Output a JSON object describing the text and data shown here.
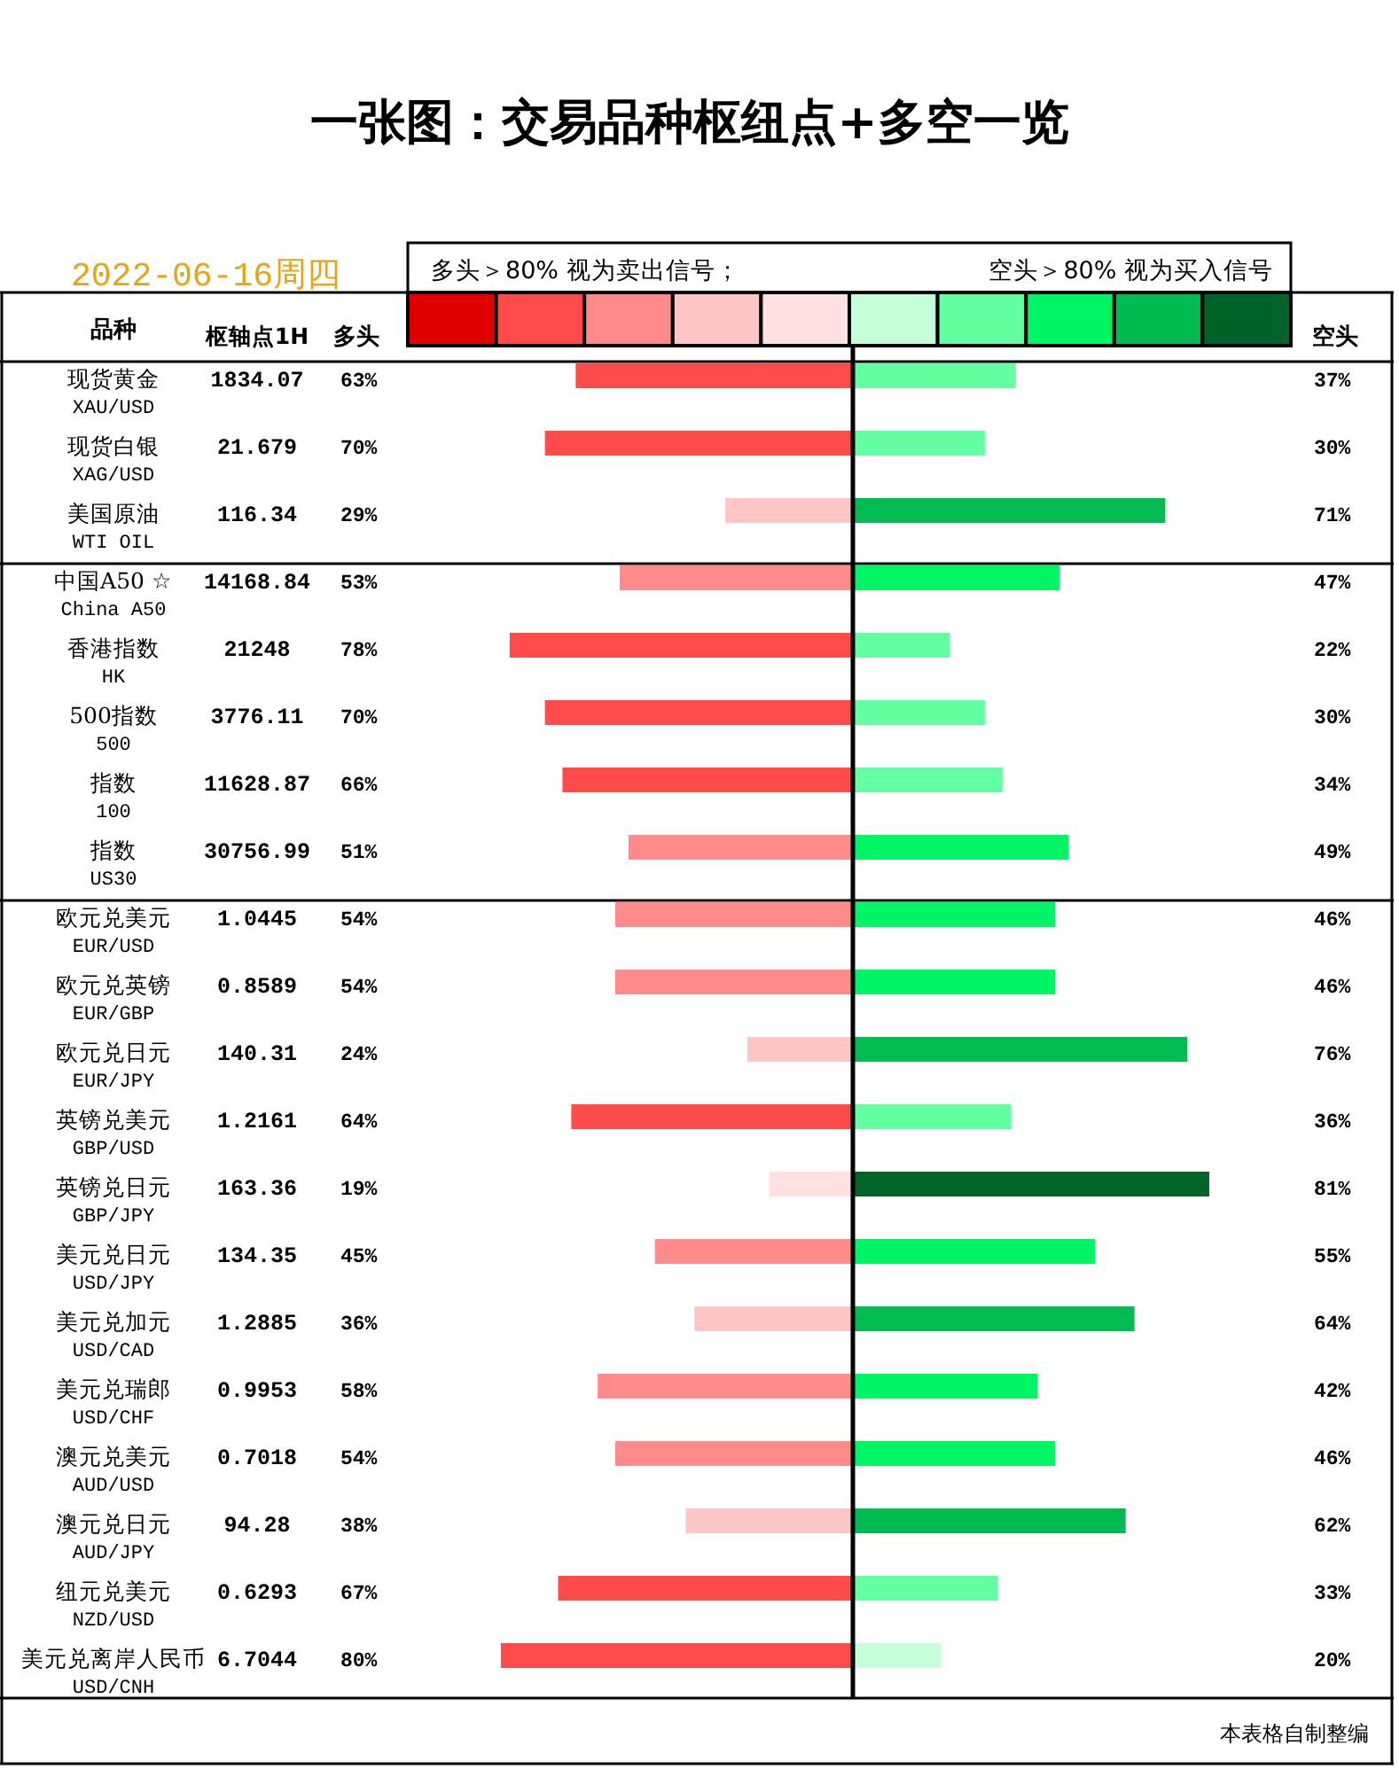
{
  "chart_data": [
    {
      "type": "bar",
      "orientation": "horizontal",
      "title": "一张图：交易品种枢纽点+多空一览",
      "subtitle": "2022-06-16周四",
      "ylabel": "品种",
      "y2label": "枢轴点1H",
      "categories": [
        "现货黄金\nXAU/USD",
        "现货白银\nXAG/USD",
        "美国原油\nWTI OIL",
        "中国A50 ☆\nChina A50",
        "香港指数\nHK",
        "500指数\n500",
        "指数\n100",
        "指数\nUS30",
        "欧元兑美元\nEUR/USD",
        "欧元兑英镑\nEUR/GBP",
        "欧元兑日元\nEUR/JPY",
        "英镑兑美元\nGBP/USD",
        "英镑兑日元\nGBP/JPY",
        "美元兑日元\nUSD/JPY",
        "美元兑加元\nUSD/CAD",
        "美元兑瑞郎\nUSD/CHF",
        "澳元兑美元\nAUD/USD",
        "澳元兑日元\nAUD/JPY",
        "纽元兑美元\nNZD/USD",
        "美元兑离岸人民币\nUSD/CNH"
      ],
      "y2_categories": [
        "1834.07",
        "21.679",
        "116.34",
        "14168.84",
        "21248",
        "3776.11",
        "11628.87",
        "30756.99",
        "1.0445",
        "0.8589",
        "140.31",
        "1.2161",
        "163.36",
        "134.35",
        "1.2885",
        "0.9953",
        "0.7018",
        "94.28",
        "0.6293",
        "6.7044"
      ],
      "series": [
        {
          "values": [
            63,
            70,
            29,
            53,
            78,
            70,
            66,
            51,
            54,
            54,
            24,
            64,
            19,
            45,
            36,
            58,
            54,
            38,
            67,
            80
          ],
          "colors": [
            "#ff4b4b",
            "#ff4b4b",
            "#ffc6c6",
            "#ff8a8a",
            "#ff4b4b",
            "#ff4b4b",
            "#ff4b4b",
            "#ff8a8a",
            "#ff8a8a",
            "#ff8a8a",
            "#ffc6c6",
            "#ff4b4b",
            "#ffe1e1",
            "#ff8a8a",
            "#ffc6c6",
            "#ff8a8a",
            "#ff8a8a",
            "#ffc6c6",
            "#ff4b4b",
            "#ff4b4b"
          ],
          "value_labels": [
            "63%",
            "70%",
            "29%",
            "53%",
            "78%",
            "70%",
            "66%",
            "51%",
            "54%",
            "54%",
            "24%",
            "64%",
            "19%",
            "45%",
            "36%",
            "58%",
            "54%",
            "38%",
            "67%",
            "80%"
          ]
        }
      ],
      "tick_labels": "y",
      "annotations": [
        "多头＞80% 视为卖出信号；",
        "空头＞80% 视为买入信号",
        "多头",
        "空头",
        "本表格自制整编"
      ]
    },
    {
      "type": "bar",
      "orientation": "horizontal",
      "categories": [
        null,
        null,
        null,
        null,
        null,
        null,
        null,
        null,
        null,
        null,
        null,
        null,
        null,
        null,
        null,
        null,
        null,
        null,
        null,
        null
      ],
      "series": [
        {
          "values": [
            37,
            30,
            71,
            47,
            22,
            30,
            34,
            49,
            46,
            46,
            76,
            36,
            81,
            55,
            64,
            42,
            46,
            62,
            33,
            20
          ],
          "colors": [
            "#64ffa0",
            "#64ffa0",
            "#00bb4f",
            "#00f564",
            "#64ffa0",
            "#64ffa0",
            "#64ffa0",
            "#00f564",
            "#00f564",
            "#00f564",
            "#00bb4f",
            "#64ffa0",
            "#006428",
            "#00f564",
            "#00bb4f",
            "#00f564",
            "#00f564",
            "#00bb4f",
            "#64ffa0",
            "#c5ffd9"
          ],
          "value_labels": [
            "37%",
            "30%",
            "71%",
            "47%",
            "22%",
            "30%",
            "34%",
            "49%",
            "46%",
            "46%",
            "76%",
            "36%",
            "81%",
            "55%",
            "64%",
            "42%",
            "46%",
            "62%",
            "33%",
            "20%"
          ]
        }
      ]
    }
  ]
}
